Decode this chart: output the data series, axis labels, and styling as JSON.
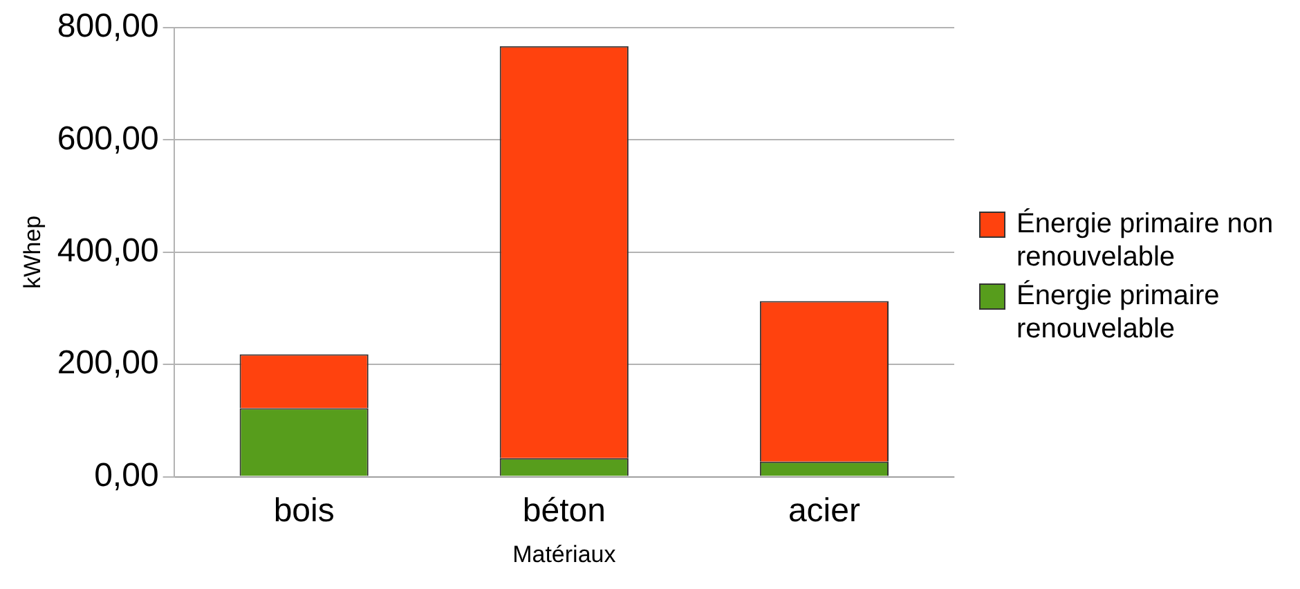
{
  "chart_data": {
    "type": "bar",
    "stacked": true,
    "xlabel": "Matériaux",
    "ylabel": "kWhep",
    "categories": [
      "bois",
      "béton",
      "acier"
    ],
    "series": [
      {
        "name": "Énergie primaire renouvelable",
        "color": "#579d1c",
        "values": [
          122,
          33,
          27
        ]
      },
      {
        "name": "Énergie primaire non renouvelable",
        "color": "#ff420e",
        "values": [
          96,
          734,
          286
        ]
      }
    ],
    "ylim": [
      0,
      800
    ],
    "yticks": [
      {
        "value": 0,
        "label": "0,00"
      },
      {
        "value": 200,
        "label": "200,00"
      },
      {
        "value": 400,
        "label": "400,00"
      },
      {
        "value": 600,
        "label": "600,00"
      },
      {
        "value": 800,
        "label": "800,00"
      }
    ],
    "grid": "y",
    "legend": "right"
  }
}
